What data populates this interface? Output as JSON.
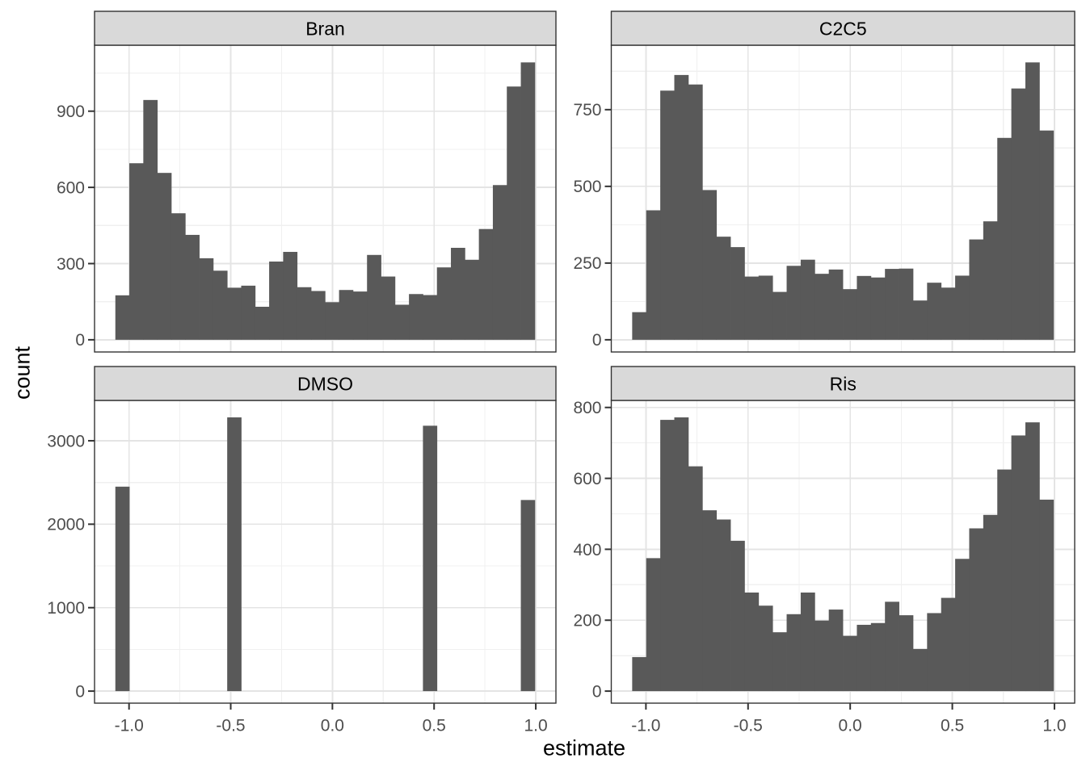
{
  "figure": {
    "colors": {
      "bar": "#595959",
      "strip_fill": "#D9D9D9",
      "panel_border": "#333333",
      "panel_background": "#FFFFFF",
      "grid_major": "#E4E4E4",
      "grid_minor": "#F0F0F0",
      "tick_mark": "#333333",
      "tick_label": "#4D4D4D",
      "text": "#000000",
      "background": "#FFFFFF"
    }
  },
  "chart_data": {
    "type": "bar",
    "subtype": "faceted_histogram",
    "title": "",
    "xlabel": "estimate",
    "ylabel": "count",
    "grid": true,
    "legend": false,
    "x": {
      "bin_start": -1.0665,
      "bin_width": 0.06875,
      "n_bins": 30,
      "range": [
        -1.1696,
        1.0991
      ],
      "ticks": [
        -1.0,
        -0.5,
        0.0,
        0.5,
        1.0
      ],
      "tick_labels": [
        "-1.0",
        "-0.5",
        "0.0",
        "0.5",
        "1.0"
      ],
      "minor_ticks": [
        -0.75,
        -0.25,
        0.25,
        0.75
      ]
    },
    "facets": [
      {
        "title": "Bran",
        "y_ticks": [
          0,
          300,
          600,
          900
        ],
        "y_tick_labels": [
          "0",
          "300",
          "600",
          "900"
        ],
        "y_minor": [
          150,
          450,
          750,
          1050
        ],
        "counts": [
          175,
          695,
          944,
          657,
          498,
          413,
          321,
          272,
          205,
          213,
          130,
          308,
          346,
          207,
          192,
          148,
          196,
          190,
          334,
          249,
          138,
          180,
          176,
          285,
          362,
          315,
          436,
          609,
          997,
          1092
        ]
      },
      {
        "title": "C2C5",
        "y_ticks": [
          0,
          250,
          500,
          750
        ],
        "y_tick_labels": [
          "0",
          "250",
          "500",
          "750"
        ],
        "y_minor": [
          125,
          375,
          625,
          875
        ],
        "counts": [
          90,
          422,
          812,
          863,
          832,
          488,
          336,
          302,
          206,
          209,
          156,
          241,
          261,
          215,
          229,
          165,
          208,
          203,
          231,
          232,
          128,
          186,
          170,
          209,
          327,
          386,
          658,
          819,
          904,
          682
        ]
      },
      {
        "title": "DMSO",
        "y_ticks": [
          0,
          1000,
          2000,
          3000
        ],
        "y_tick_labels": [
          "0",
          "1000",
          "2000",
          "3000"
        ],
        "y_minor": [
          500,
          1500,
          2500
        ],
        "counts": [
          2450,
          0,
          0,
          0,
          0,
          0,
          0,
          0,
          3280,
          0,
          0,
          0,
          0,
          0,
          0,
          0,
          0,
          0,
          0,
          0,
          0,
          0,
          3180,
          0,
          0,
          0,
          0,
          0,
          0,
          2290
        ]
      },
      {
        "title": "Ris",
        "y_ticks": [
          0,
          200,
          400,
          600,
          800
        ],
        "y_tick_labels": [
          "0",
          "200",
          "400",
          "600",
          "800"
        ],
        "y_minor": [
          100,
          300,
          500,
          700
        ],
        "counts": [
          96,
          375,
          765,
          772,
          634,
          510,
          484,
          424,
          278,
          241,
          166,
          217,
          278,
          199,
          230,
          156,
          187,
          192,
          252,
          214,
          119,
          220,
          263,
          373,
          459,
          497,
          625,
          721,
          758,
          540
        ]
      }
    ]
  }
}
